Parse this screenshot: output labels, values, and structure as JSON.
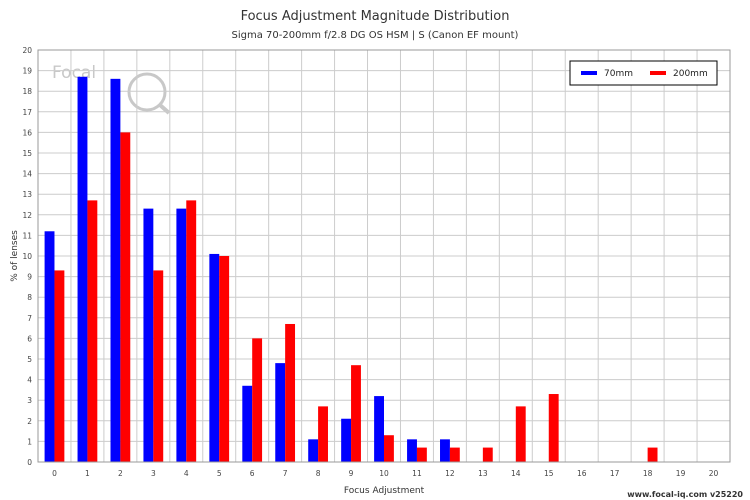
{
  "chart_data": {
    "type": "bar",
    "title": "Focus Adjustment Magnitude Distribution",
    "subtitle": "Sigma 70-200mm f/2.8 DG OS HSM | S (Canon EF mount)",
    "xlabel": "Focus Adjustment",
    "ylabel": "% of lenses",
    "categories": [
      "0",
      "1",
      "2",
      "3",
      "4",
      "5",
      "6",
      "7",
      "8",
      "9",
      "10",
      "11",
      "12",
      "13",
      "14",
      "15",
      "16",
      "17",
      "18",
      "19",
      "20"
    ],
    "ylim": [
      0,
      20
    ],
    "yticks": [
      "0",
      "1",
      "2",
      "3",
      "4",
      "5",
      "6",
      "7",
      "8",
      "9",
      "10",
      "11",
      "12",
      "13",
      "14",
      "15",
      "16",
      "17",
      "18",
      "19",
      "20"
    ],
    "grid": true,
    "legend_position": "top-right",
    "series": [
      {
        "name": "70mm",
        "color": "#0000ff",
        "values": [
          11.2,
          18.7,
          18.6,
          12.3,
          12.3,
          10.1,
          3.7,
          4.8,
          1.1,
          2.1,
          3.2,
          1.1,
          1.1,
          0,
          0,
          0,
          0,
          0,
          0,
          0,
          0
        ]
      },
      {
        "name": "200mm",
        "color": "#ff0000",
        "values": [
          9.3,
          12.7,
          16.0,
          9.3,
          12.7,
          10.0,
          6.0,
          6.7,
          2.7,
          4.7,
          1.3,
          0.7,
          0.7,
          0.7,
          2.7,
          3.3,
          0,
          0,
          0.7,
          0,
          0
        ]
      }
    ]
  },
  "logo": {
    "text": "Focal"
  },
  "watermark": "www.focal-iq.com  v25220"
}
